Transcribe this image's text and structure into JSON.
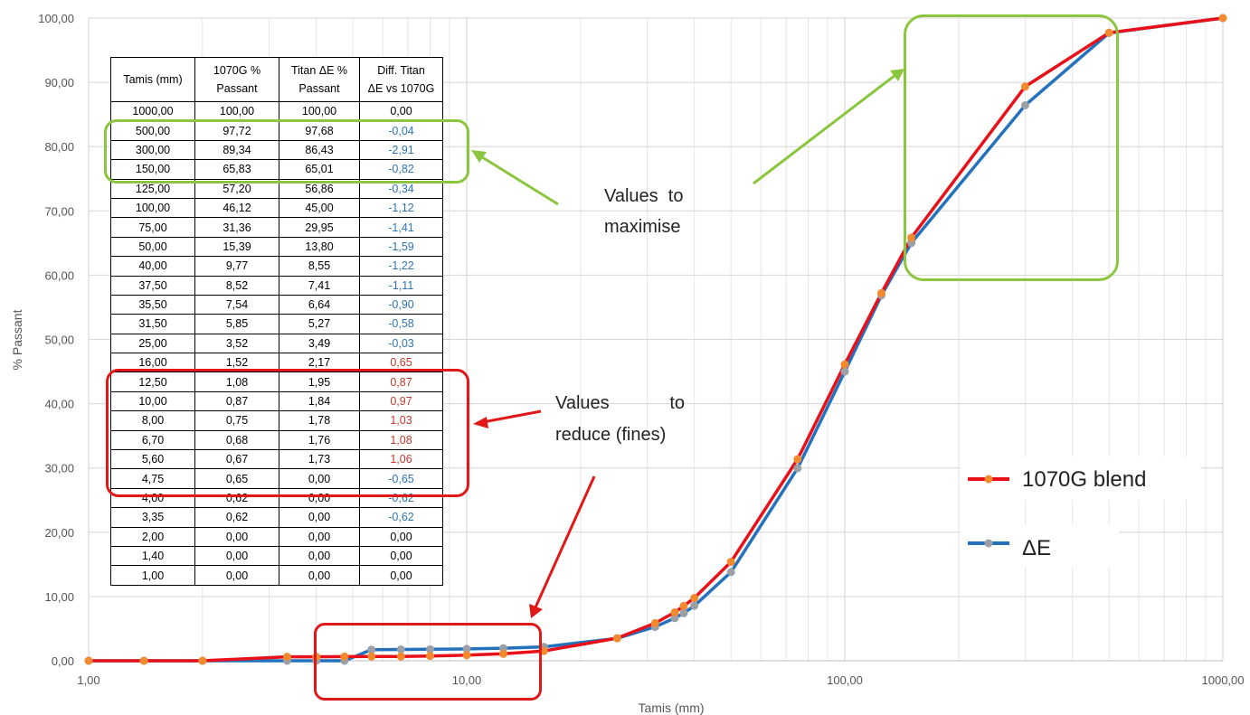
{
  "chart_data": {
    "type": "line",
    "xscale": "log",
    "xlabel": "Tamis (mm)",
    "ylabel": "% Passant",
    "xlim": [
      1,
      1000
    ],
    "ylim": [
      0,
      100
    ],
    "xticks": [
      "1,00",
      "10,00",
      "100,00",
      "1000,00"
    ],
    "yticks": [
      "0,00",
      "10,00",
      "20,00",
      "30,00",
      "40,00",
      "50,00",
      "60,00",
      "70,00",
      "80,00",
      "90,00",
      "100,00"
    ],
    "x": [
      1000,
      500,
      300,
      150,
      125,
      100,
      75,
      50,
      40,
      37.5,
      35.5,
      31.5,
      25,
      16,
      12.5,
      10,
      8,
      6.7,
      5.6,
      4.75,
      4,
      3.35,
      2,
      1.4,
      1
    ],
    "series": [
      {
        "name": "1070G blend",
        "color": "#e8111a",
        "marker": "#f28a30",
        "values": [
          100,
          97.72,
          89.34,
          65.83,
          57.2,
          46.12,
          31.36,
          15.39,
          9.77,
          8.52,
          7.54,
          5.85,
          3.52,
          1.52,
          1.08,
          0.87,
          0.75,
          0.68,
          0.67,
          0.65,
          0.62,
          0.62,
          0,
          0,
          0
        ]
      },
      {
        "name": "ΔE",
        "color": "#2472bd",
        "marker": "#9aa0a6",
        "values": [
          100,
          97.68,
          86.43,
          65.01,
          56.86,
          45.0,
          29.95,
          13.8,
          8.55,
          7.41,
          6.64,
          5.27,
          3.49,
          2.17,
          1.95,
          1.84,
          1.78,
          1.76,
          1.73,
          0,
          0,
          0,
          0,
          0,
          0
        ]
      }
    ],
    "grid": true,
    "legend_position": "right"
  },
  "table": {
    "headers": [
      [
        "Tamis (mm)"
      ],
      [
        "1070G %",
        "Passant"
      ],
      [
        "Titan ΔE %",
        "Passant"
      ],
      [
        "Diff. Titan",
        "ΔE vs 1070G"
      ]
    ],
    "rows": [
      [
        "1000,00",
        "100,00",
        "100,00",
        "0,00"
      ],
      [
        "500,00",
        "97,72",
        "97,68",
        "-0,04"
      ],
      [
        "300,00",
        "89,34",
        "86,43",
        "-2,91"
      ],
      [
        "150,00",
        "65,83",
        "65,01",
        "-0,82"
      ],
      [
        "125,00",
        "57,20",
        "56,86",
        "-0,34"
      ],
      [
        "100,00",
        "46,12",
        "45,00",
        "-1,12"
      ],
      [
        "75,00",
        "31,36",
        "29,95",
        "-1,41"
      ],
      [
        "50,00",
        "15,39",
        "13,80",
        "-1,59"
      ],
      [
        "40,00",
        "9,77",
        "8,55",
        "-1,22"
      ],
      [
        "37,50",
        "8,52",
        "7,41",
        "-1,11"
      ],
      [
        "35,50",
        "7,54",
        "6,64",
        "-0,90"
      ],
      [
        "31,50",
        "5,85",
        "5,27",
        "-0,58"
      ],
      [
        "25,00",
        "3,52",
        "3,49",
        "-0,03"
      ],
      [
        "16,00",
        "1,52",
        "2,17",
        "0,65"
      ],
      [
        "12,50",
        "1,08",
        "1,95",
        "0,87"
      ],
      [
        "10,00",
        "0,87",
        "1,84",
        "0,97"
      ],
      [
        "8,00",
        "0,75",
        "1,78",
        "1,03"
      ],
      [
        "6,70",
        "0,68",
        "1,76",
        "1,08"
      ],
      [
        "5,60",
        "0,67",
        "1,73",
        "1,06"
      ],
      [
        "4,75",
        "0,65",
        "0,00",
        "-0,65"
      ],
      [
        "4,00",
        "0,62",
        "0,00",
        "-0,62"
      ],
      [
        "3,35",
        "0,62",
        "0,00",
        "-0,62"
      ],
      [
        "2,00",
        "0,00",
        "0,00",
        "0,00"
      ],
      [
        "1,40",
        "0,00",
        "0,00",
        "0,00"
      ],
      [
        "1,00",
        "0,00",
        "0,00",
        "0,00"
      ]
    ]
  },
  "annotations": {
    "maximise": [
      "Values  to",
      "maximise"
    ],
    "reduce": [
      "Values            to",
      "reduce (fines)"
    ],
    "highlight_green": "#8cc63f",
    "highlight_red": "#e01818"
  },
  "legend": {
    "items": [
      "1070G blend",
      "ΔE"
    ]
  }
}
